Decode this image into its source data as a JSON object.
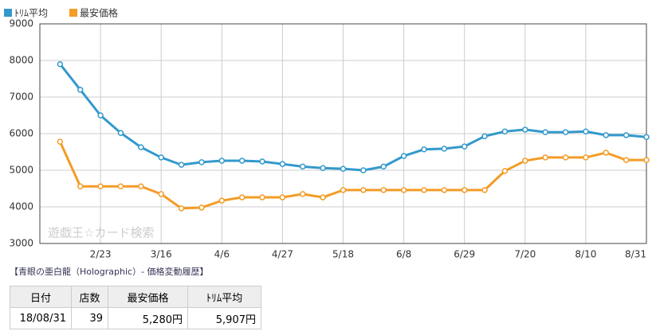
{
  "chart_data": {
    "type": "line",
    "watermark": "遊戯王☆カード検索",
    "categories": [
      null,
      null,
      "2/23",
      null,
      null,
      "3/16",
      null,
      null,
      "4/6",
      null,
      null,
      "4/27",
      null,
      null,
      "5/18",
      null,
      null,
      "6/8",
      null,
      null,
      "6/29",
      null,
      null,
      "7/20",
      null,
      null,
      "8/10",
      null,
      null,
      "8/31"
    ],
    "series": [
      {
        "name": "ﾄﾘﾑ平均",
        "color": "#3399cc",
        "values": [
          7900,
          7200,
          6500,
          6020,
          5630,
          5350,
          5150,
          5220,
          5260,
          5260,
          5240,
          5170,
          5100,
          5060,
          5040,
          5000,
          5100,
          5390,
          5570,
          5590,
          5650,
          5930,
          6060,
          6110,
          6040,
          6040,
          6060,
          5960,
          5960,
          5907
        ]
      },
      {
        "name": "最安価格",
        "color": "#f39c26",
        "values": [
          5780,
          4560,
          4560,
          4560,
          4560,
          4350,
          3960,
          3980,
          4170,
          4260,
          4260,
          4260,
          4350,
          4260,
          4460,
          4460,
          4460,
          4460,
          4460,
          4460,
          4460,
          4460,
          4980,
          5260,
          5350,
          5350,
          5350,
          5480,
          5280,
          5280
        ]
      }
    ],
    "ylim": [
      3000,
      9000
    ],
    "yticks": [
      3000,
      4000,
      5000,
      6000,
      7000,
      8000,
      9000
    ],
    "grid": true
  },
  "caption": "【青眼の亜白龍（Holographic）- 価格変動履歴】",
  "table": {
    "header": [
      "日付",
      "店数",
      "最安価格",
      "ﾄﾘﾑ平均"
    ],
    "rows": [
      [
        "18/08/31",
        "39",
        "5,280円",
        "5,907円"
      ]
    ]
  }
}
